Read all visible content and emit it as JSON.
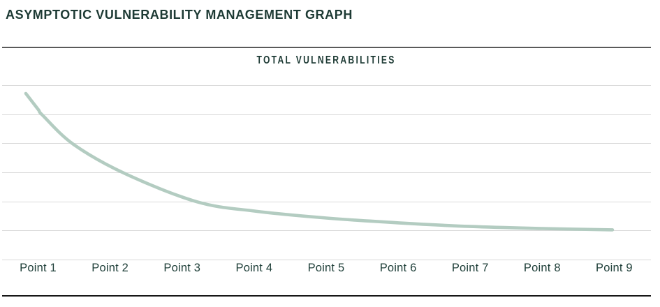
{
  "title": "ASYMPTOTIC VULNERABILITY MANAGEMENT GRAPH",
  "chart_data": {
    "type": "line",
    "title": "TOTAL VULNERABILITIES",
    "categories": [
      "Point 1",
      "Point 2",
      "Point 3",
      "Point 4",
      "Point 5",
      "Point 6",
      "Point 7",
      "Point 8",
      "Point 9"
    ],
    "values": [
      90,
      57,
      38,
      29,
      25,
      22,
      20,
      19,
      18
    ],
    "curve_samples": [
      [
        0.825,
        100
      ],
      [
        1.0,
        90.2
      ],
      [
        1.06,
        86.8
      ],
      [
        1.49,
        69.3
      ],
      [
        2.2,
        51.8
      ],
      [
        3.2,
        34.8
      ],
      [
        4.0,
        29.2
      ],
      [
        5.0,
        25.0
      ],
      [
        6.0,
        22.1
      ],
      [
        7.0,
        19.9
      ],
      [
        8.0,
        18.7
      ],
      [
        8.97,
        17.9
      ]
    ],
    "xlabel": "",
    "ylabel": "",
    "y_axis_labels_visible": false,
    "ylim": [
      0,
      110
    ],
    "grid": "horizontal",
    "gridline_count": 7,
    "legend": "none",
    "colors": {
      "curve": "#b3ccc1",
      "gridline": "#d9d9d9",
      "text": "#1d3a34",
      "axis_label_text": "#20403a",
      "header_divider": "#5a5a5a",
      "baseline": "#161616",
      "background": "#ffffff"
    }
  }
}
